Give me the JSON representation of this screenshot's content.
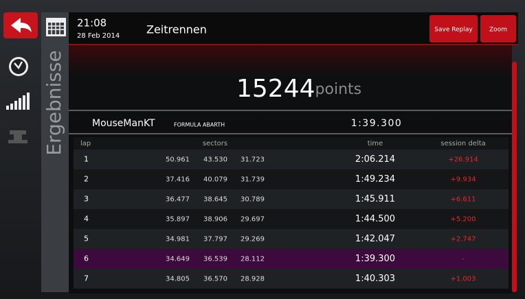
{
  "header": {
    "time": "21:08",
    "date": "28 Feb 2014",
    "title": "Zeitrennen",
    "buttons": [
      "Save Replay",
      "Zoom"
    ]
  },
  "sidebar": {
    "label": "Ergebnisse"
  },
  "result": {
    "score": "15244",
    "unit": "points",
    "driver": "MouseManKT",
    "car": "FORMULA ABARTH",
    "best_time": "1:39.300"
  },
  "table": {
    "columns": [
      "lap",
      "sectors",
      "time",
      "session delta"
    ],
    "rows": [
      [
        "1",
        "50.961",
        "43.530",
        "31.723",
        "2:06.214",
        "+26.914"
      ],
      [
        "2",
        "37.416",
        "40.079",
        "31.739",
        "1:49.234",
        "+9.934"
      ],
      [
        "3",
        "36.477",
        "38.645",
        "30.789",
        "1:45.911",
        "+6.611"
      ],
      [
        "4",
        "35.897",
        "38.906",
        "29.697",
        "1:44.500",
        "+5.200"
      ],
      [
        "5",
        "34.981",
        "37.797",
        "29.269",
        "1:42.047",
        "+2.747"
      ],
      [
        "6",
        "34.649",
        "36.539",
        "28.112",
        "1:39.300",
        "-"
      ],
      [
        "7",
        "34.805",
        "36.570",
        "28.928",
        "1:40.303",
        "+1.003"
      ]
    ]
  }
}
